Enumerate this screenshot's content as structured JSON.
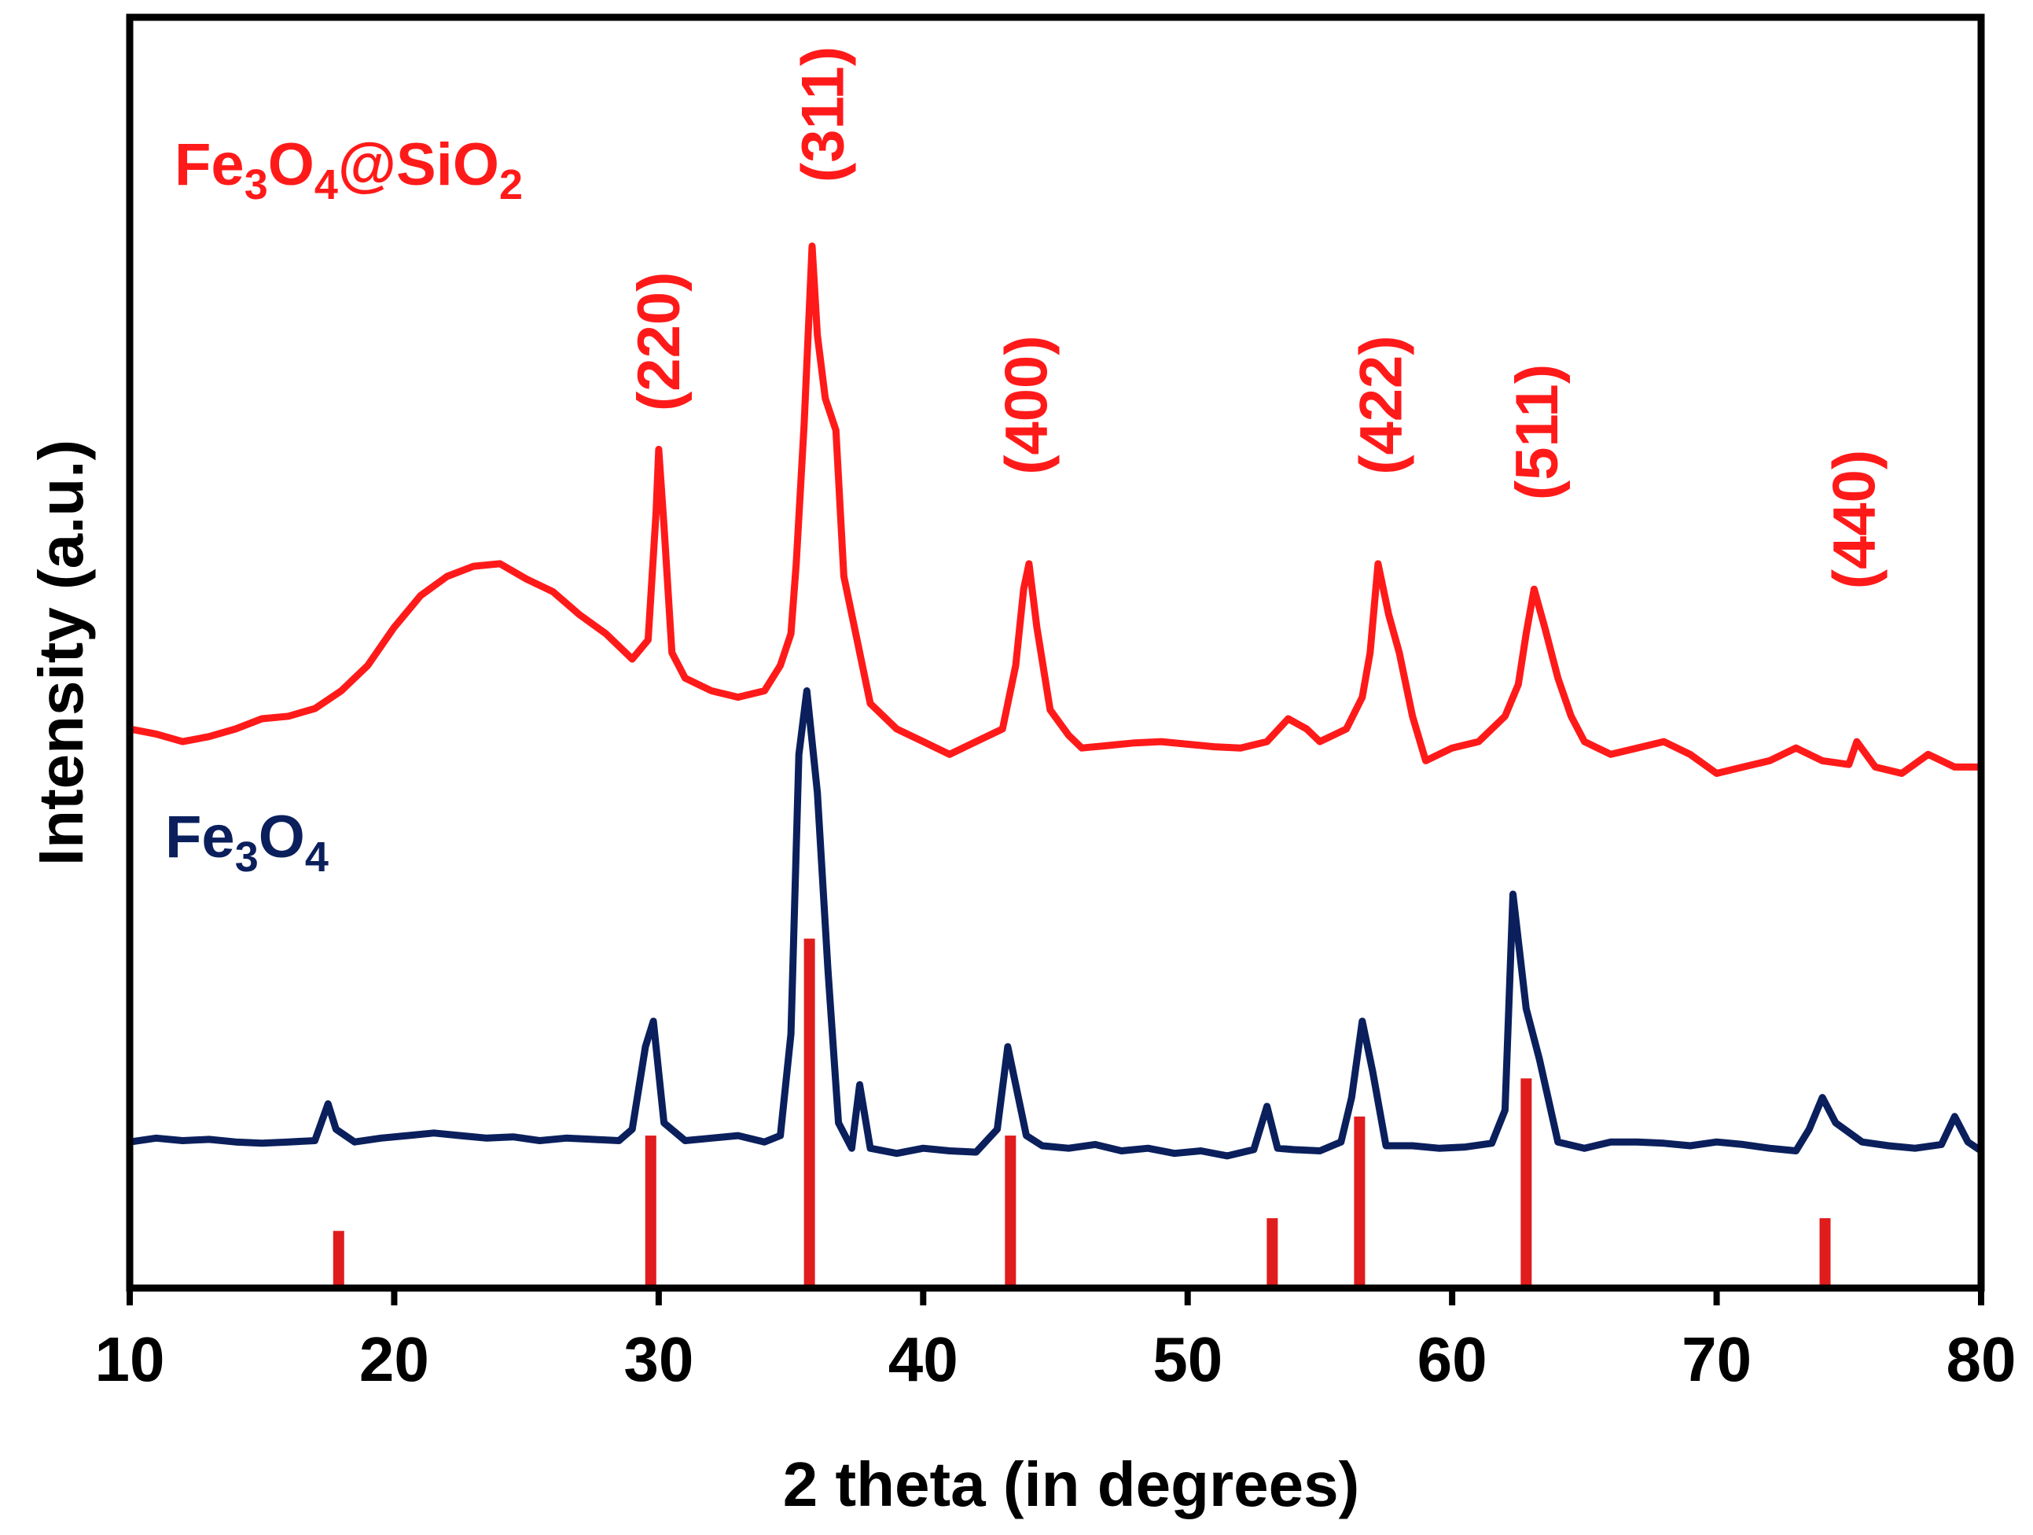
{
  "chart_data": {
    "type": "line",
    "xlabel": "2 theta (in degrees)",
    "ylabel": "Intensity (a.u.)",
    "xlim": [
      10,
      80
    ],
    "ylim": [
      0,
      100
    ],
    "xticks": [
      "10",
      "20",
      "30",
      "40",
      "50",
      "60",
      "70",
      "80"
    ],
    "yticks": [],
    "grid": false,
    "series_labels": [
      {
        "base": "Fe",
        "s1": "3",
        "mid": "O",
        "s2": "4",
        "tail": "@SiO",
        "s3": "2",
        "color": "#ff1a1a"
      },
      {
        "base": "Fe",
        "s1": "3",
        "mid": "O",
        "s2": "4",
        "tail": "",
        "s3": "",
        "color": "#0a1f5c"
      }
    ],
    "peak_labels": [
      {
        "text": "(220)",
        "x": 30.0,
        "y": 69
      },
      {
        "text": "(311)",
        "x": 36.2,
        "y": 87
      },
      {
        "text": "(400)",
        "x": 43.9,
        "y": 64
      },
      {
        "text": "(422)",
        "x": 57.3,
        "y": 64
      },
      {
        "text": "(511)",
        "x": 63.2,
        "y": 62
      },
      {
        "text": "(440)",
        "x": 75.2,
        "y": 55
      }
    ],
    "series": [
      {
        "name": "Fe3O4@SiO2",
        "color": "#ff1a1a",
        "points": [
          [
            10.0,
            44.0
          ],
          [
            11.0,
            43.6
          ],
          [
            12.0,
            43.0
          ],
          [
            13.0,
            43.4
          ],
          [
            14.0,
            44.0
          ],
          [
            15.0,
            44.8
          ],
          [
            16.0,
            45.0
          ],
          [
            17.0,
            45.6
          ],
          [
            18.0,
            47.0
          ],
          [
            19.0,
            49.0
          ],
          [
            20.0,
            52.0
          ],
          [
            21.0,
            54.5
          ],
          [
            22.0,
            56.0
          ],
          [
            23.0,
            56.8
          ],
          [
            24.0,
            57.0
          ],
          [
            25.0,
            55.8
          ],
          [
            26.0,
            54.8
          ],
          [
            27.0,
            53.0
          ],
          [
            28.0,
            51.5
          ],
          [
            29.0,
            49.5
          ],
          [
            29.6,
            51.0
          ],
          [
            29.9,
            61.0
          ],
          [
            30.0,
            66.0
          ],
          [
            30.2,
            60.0
          ],
          [
            30.5,
            50.0
          ],
          [
            31.0,
            48.0
          ],
          [
            32.0,
            47.0
          ],
          [
            33.0,
            46.5
          ],
          [
            34.0,
            47.0
          ],
          [
            34.6,
            49.0
          ],
          [
            35.0,
            51.5
          ],
          [
            35.2,
            57.0
          ],
          [
            35.5,
            68.0
          ],
          [
            35.8,
            82.0
          ],
          [
            36.0,
            75.0
          ],
          [
            36.3,
            70.0
          ],
          [
            36.7,
            67.5
          ],
          [
            37.0,
            56.0
          ],
          [
            37.5,
            51.0
          ],
          [
            38.0,
            46.0
          ],
          [
            39.0,
            44.0
          ],
          [
            40.0,
            43.0
          ],
          [
            41.0,
            42.0
          ],
          [
            42.0,
            43.0
          ],
          [
            43.0,
            44.0
          ],
          [
            43.5,
            49.0
          ],
          [
            43.8,
            55.0
          ],
          [
            44.0,
            57.0
          ],
          [
            44.3,
            52.0
          ],
          [
            44.8,
            45.5
          ],
          [
            45.5,
            43.5
          ],
          [
            46.0,
            42.5
          ],
          [
            47.0,
            42.7
          ],
          [
            48.0,
            42.9
          ],
          [
            49.0,
            43.0
          ],
          [
            50.0,
            42.8
          ],
          [
            51.0,
            42.6
          ],
          [
            52.0,
            42.5
          ],
          [
            53.0,
            43.0
          ],
          [
            53.8,
            44.8
          ],
          [
            54.5,
            44.0
          ],
          [
            55.0,
            43.0
          ],
          [
            56.0,
            44.0
          ],
          [
            56.6,
            46.5
          ],
          [
            56.9,
            50.0
          ],
          [
            57.2,
            57.0
          ],
          [
            57.6,
            53.0
          ],
          [
            58.0,
            50.0
          ],
          [
            58.5,
            45.0
          ],
          [
            59.0,
            41.5
          ],
          [
            60.0,
            42.5
          ],
          [
            61.0,
            43.0
          ],
          [
            62.0,
            45.0
          ],
          [
            62.5,
            47.5
          ],
          [
            62.8,
            51.5
          ],
          [
            63.1,
            55.0
          ],
          [
            63.5,
            52.0
          ],
          [
            64.0,
            48.0
          ],
          [
            64.5,
            45.0
          ],
          [
            65.0,
            43.0
          ],
          [
            66.0,
            42.0
          ],
          [
            67.0,
            42.5
          ],
          [
            68.0,
            43.0
          ],
          [
            69.0,
            42.0
          ],
          [
            70.0,
            40.5
          ],
          [
            71.0,
            41.0
          ],
          [
            72.0,
            41.5
          ],
          [
            73.0,
            42.5
          ],
          [
            74.0,
            41.5
          ],
          [
            75.0,
            41.2
          ],
          [
            75.3,
            43.0
          ],
          [
            76.0,
            41.0
          ],
          [
            77.0,
            40.5
          ],
          [
            78.0,
            42.0
          ],
          [
            79.0,
            41.0
          ],
          [
            80.0,
            41.0
          ]
        ]
      },
      {
        "name": "Fe3O4",
        "color": "#0a1f5c",
        "points": [
          [
            10.0,
            11.5
          ],
          [
            11.0,
            11.8
          ],
          [
            12.0,
            11.6
          ],
          [
            13.0,
            11.7
          ],
          [
            14.0,
            11.5
          ],
          [
            15.0,
            11.4
          ],
          [
            16.0,
            11.5
          ],
          [
            17.0,
            11.6
          ],
          [
            17.5,
            14.5
          ],
          [
            17.8,
            12.5
          ],
          [
            18.5,
            11.5
          ],
          [
            19.5,
            11.8
          ],
          [
            20.5,
            12.0
          ],
          [
            21.5,
            12.2
          ],
          [
            22.5,
            12.0
          ],
          [
            23.5,
            11.8
          ],
          [
            24.5,
            11.9
          ],
          [
            25.5,
            11.6
          ],
          [
            26.5,
            11.8
          ],
          [
            27.5,
            11.7
          ],
          [
            28.5,
            11.6
          ],
          [
            29.0,
            12.5
          ],
          [
            29.5,
            19.0
          ],
          [
            29.8,
            21.0
          ],
          [
            30.2,
            13.0
          ],
          [
            31.0,
            11.6
          ],
          [
            32.0,
            11.8
          ],
          [
            33.0,
            12.0
          ],
          [
            34.0,
            11.5
          ],
          [
            34.6,
            12.0
          ],
          [
            35.0,
            20.0
          ],
          [
            35.3,
            42.0
          ],
          [
            35.6,
            47.0
          ],
          [
            36.0,
            39.0
          ],
          [
            36.4,
            25.0
          ],
          [
            36.8,
            13.0
          ],
          [
            37.3,
            11.0
          ],
          [
            37.6,
            16.0
          ],
          [
            38.0,
            11.0
          ],
          [
            39.0,
            10.6
          ],
          [
            40.0,
            11.0
          ],
          [
            41.0,
            10.8
          ],
          [
            42.0,
            10.7
          ],
          [
            42.8,
            12.5
          ],
          [
            43.2,
            19.0
          ],
          [
            43.5,
            16.0
          ],
          [
            43.9,
            12.0
          ],
          [
            44.5,
            11.2
          ],
          [
            45.5,
            11.0
          ],
          [
            46.5,
            11.3
          ],
          [
            47.5,
            10.8
          ],
          [
            48.5,
            11.0
          ],
          [
            49.5,
            10.6
          ],
          [
            50.5,
            10.8
          ],
          [
            51.5,
            10.4
          ],
          [
            52.5,
            10.9
          ],
          [
            53.0,
            14.3
          ],
          [
            53.4,
            11.0
          ],
          [
            54.0,
            10.9
          ],
          [
            55.0,
            10.8
          ],
          [
            55.8,
            11.5
          ],
          [
            56.2,
            15.0
          ],
          [
            56.6,
            21.0
          ],
          [
            57.0,
            17.0
          ],
          [
            57.5,
            11.2
          ],
          [
            58.5,
            11.2
          ],
          [
            59.5,
            11.0
          ],
          [
            60.5,
            11.1
          ],
          [
            61.5,
            11.4
          ],
          [
            62.0,
            14.0
          ],
          [
            62.3,
            31.0
          ],
          [
            62.8,
            22.0
          ],
          [
            63.3,
            18.0
          ],
          [
            64.0,
            11.5
          ],
          [
            65.0,
            11.0
          ],
          [
            66.0,
            11.5
          ],
          [
            67.0,
            11.5
          ],
          [
            68.0,
            11.4
          ],
          [
            69.0,
            11.2
          ],
          [
            70.0,
            11.5
          ],
          [
            71.0,
            11.3
          ],
          [
            72.0,
            11.0
          ],
          [
            73.0,
            10.8
          ],
          [
            73.5,
            12.5
          ],
          [
            74.0,
            15.0
          ],
          [
            74.5,
            13.0
          ],
          [
            75.5,
            11.5
          ],
          [
            76.5,
            11.2
          ],
          [
            77.5,
            11.0
          ],
          [
            78.5,
            11.3
          ],
          [
            79.0,
            13.5
          ],
          [
            79.5,
            11.5
          ],
          [
            80.0,
            10.8
          ]
        ]
      }
    ],
    "reference_bars": [
      {
        "x": 17.9,
        "height": 4.5
      },
      {
        "x": 29.7,
        "height": 12.0
      },
      {
        "x": 35.7,
        "height": 27.5
      },
      {
        "x": 43.3,
        "height": 12.0
      },
      {
        "x": 53.2,
        "height": 5.5
      },
      {
        "x": 56.5,
        "height": 13.5
      },
      {
        "x": 62.8,
        "height": 16.5
      },
      {
        "x": 74.1,
        "height": 5.5
      }
    ],
    "reference_bar_color": "#e01c1c"
  }
}
